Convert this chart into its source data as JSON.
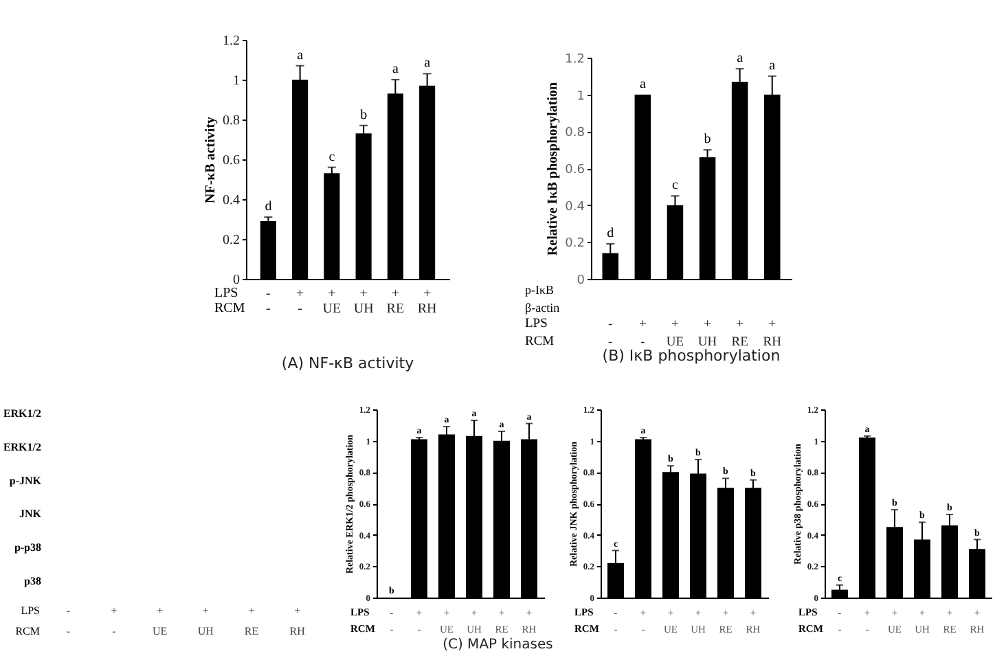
{
  "chart_data": [
    {
      "type": "bar",
      "title": "(A) NF-κB activity",
      "ylabel": "NF-κB activity",
      "categories": [
        "-\n-",
        "+\n-",
        "+\nUE",
        "+\nUH",
        "+\nRE",
        "+\nRH"
      ],
      "values": [
        0.29,
        1.0,
        0.53,
        0.73,
        0.93,
        0.97
      ],
      "errors": [
        0.02,
        0.07,
        0.03,
        0.04,
        0.07,
        0.06
      ],
      "color": "#000000",
      "ylim": [
        0,
        1.2
      ],
      "yticks": [
        0,
        0.2,
        0.4,
        0.6,
        0.8,
        1,
        1.2
      ],
      "annotations": [
        "d",
        "a",
        "c",
        "b",
        "a",
        "a",
        "LPS",
        "RCM"
      ]
    },
    {
      "type": "bar",
      "title": "(B) IκB phosphorylation",
      "ylabel": "Relative IκB phosphorylation",
      "categories": [
        "-\n-",
        "+\n-",
        "+\nUE",
        "+\nUH",
        "+\nRE",
        "+\nRH"
      ],
      "values": [
        0.14,
        1.0,
        0.4,
        0.66,
        1.07,
        1.0
      ],
      "errors": [
        0.05,
        null,
        0.05,
        0.04,
        0.07,
        0.1
      ],
      "color": "#000000",
      "ylim": [
        0,
        1.2
      ],
      "yticks": [
        0,
        0.2,
        0.4,
        0.6,
        0.8,
        1,
        1.2
      ],
      "annotations": [
        "d",
        "a",
        "c",
        "b",
        "a",
        "a",
        "p-IκB",
        "β-actin",
        "LPS",
        "RCM"
      ]
    },
    {
      "type": "other",
      "title": "(C) MAP kinases",
      "categories": [
        "-\n-",
        "+\n-",
        "+\nUE",
        "+\nUH",
        "+\nRE",
        "+\nRH"
      ],
      "annotations": [
        "ERK1/2",
        "ERK1/2",
        "p-JNK",
        "JNK",
        "p-p38",
        "p38",
        "LPS",
        "RCM"
      ]
    },
    {
      "type": "bar",
      "ylabel": "Relative ERK1/2 phosphorylation",
      "categories": [
        "-\n-",
        "+\n-",
        "+\nUE",
        "+\nUH",
        "+\nRE",
        "+\nRH"
      ],
      "values": [
        0,
        1.01,
        1.04,
        1.03,
        1.0,
        1.01
      ],
      "errors": [
        null,
        0.01,
        0.05,
        0.1,
        0.06,
        0.1
      ],
      "color": "#000000",
      "ylim": [
        0,
        1.2
      ],
      "yticks": [
        0,
        0.2,
        0.4,
        0.6,
        0.8,
        1,
        1.2
      ],
      "annotations": [
        "b",
        "a",
        "a",
        "a",
        "a",
        "a",
        "LPS",
        "RCM"
      ]
    },
    {
      "type": "bar",
      "ylabel": "Relative JNK phosphorylation",
      "categories": [
        "-\n-",
        "+\n-",
        "+\nUE",
        "+\nUH",
        "+\nRE",
        "+\nRH"
      ],
      "values": [
        0.22,
        1.01,
        0.8,
        0.79,
        0.7,
        0.7
      ],
      "errors": [
        0.08,
        0.01,
        0.04,
        0.09,
        0.06,
        0.05
      ],
      "color": "#000000",
      "ylim": [
        0,
        1.2
      ],
      "yticks": [
        0,
        0.2,
        0.4,
        0.6,
        0.8,
        1,
        1.2
      ],
      "annotations": [
        "c",
        "a",
        "b",
        "b",
        "b",
        "b",
        "LPS",
        "RCM"
      ]
    },
    {
      "type": "bar",
      "ylabel": "Relative p38 phosphorylation",
      "categories": [
        "-\n-",
        "+\n-",
        "+\nUE",
        "+\nUH",
        "+\nRE",
        "+\nRH"
      ],
      "values": [
        0.05,
        1.02,
        0.45,
        0.37,
        0.46,
        0.31
      ],
      "errors": [
        0.03,
        0.01,
        0.11,
        0.11,
        0.07,
        0.06
      ],
      "color": "#000000",
      "ylim": [
        0,
        1.2
      ],
      "yticks": [
        0,
        0.2,
        0.4,
        0.6,
        0.8,
        1,
        1.2
      ],
      "annotations": [
        "c",
        "a",
        "b",
        "b",
        "b",
        "b",
        "LPS",
        "RCM"
      ]
    }
  ]
}
